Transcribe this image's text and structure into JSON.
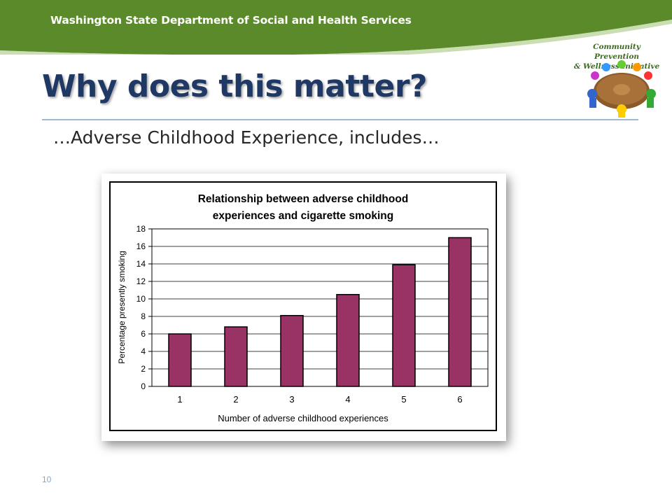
{
  "header": {
    "org": "Washington State Department of Social and Health Services",
    "logo_line1": "Community Prevention",
    "logo_line2": "& Wellness Initiative"
  },
  "slide": {
    "title": "Why does this matter?",
    "subtitle": "…Adverse Childhood Experience, includes…",
    "page_number": "10"
  },
  "colors": {
    "banner_green": "#5a8a2a",
    "bar_fill": "#993366",
    "title_blue": "#1f3864"
  },
  "chart_data": {
    "type": "bar",
    "title_line1": "Relationship between adverse childhood",
    "title_line2": "experiences and cigarette smoking",
    "xlabel": "Number of adverse childhood experiences",
    "ylabel": "Percentage presently smoking",
    "categories": [
      "1",
      "2",
      "3",
      "4",
      "5",
      "6"
    ],
    "values": [
      6.0,
      6.8,
      8.1,
      10.5,
      13.9,
      17.0
    ],
    "ylim": [
      0,
      18
    ],
    "yticks": [
      0,
      2,
      4,
      6,
      8,
      10,
      12,
      14,
      16,
      18
    ],
    "grid": true,
    "legend": "none"
  }
}
